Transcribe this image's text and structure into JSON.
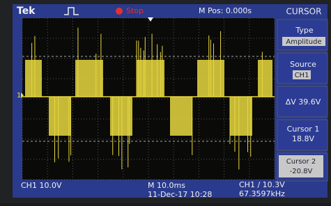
{
  "top_bar": {
    "brand": "Tek",
    "run_state": "Stop",
    "position": "M Pos: 0.000s",
    "menu": "CURSOR"
  },
  "side_menu": {
    "type_label": "Type",
    "type_value": "Amplitude",
    "source_label": "Source",
    "source_value": "CH1",
    "delta": "ΔV 39.6V",
    "cursor1_label": "Cursor 1",
    "cursor1_value": "18.8V",
    "cursor2_label": "Cursor 2",
    "cursor2_value": "-20.8V"
  },
  "channel_marker": "1",
  "bottom_bar": {
    "channel_scale": "CH1  10.0V",
    "timebase": "M 10.0ms",
    "datetime": "11-Dec-17 10:28",
    "trigger": "CH1 ∕ 10.3V",
    "frequency": "67.3597kHz"
  }
}
